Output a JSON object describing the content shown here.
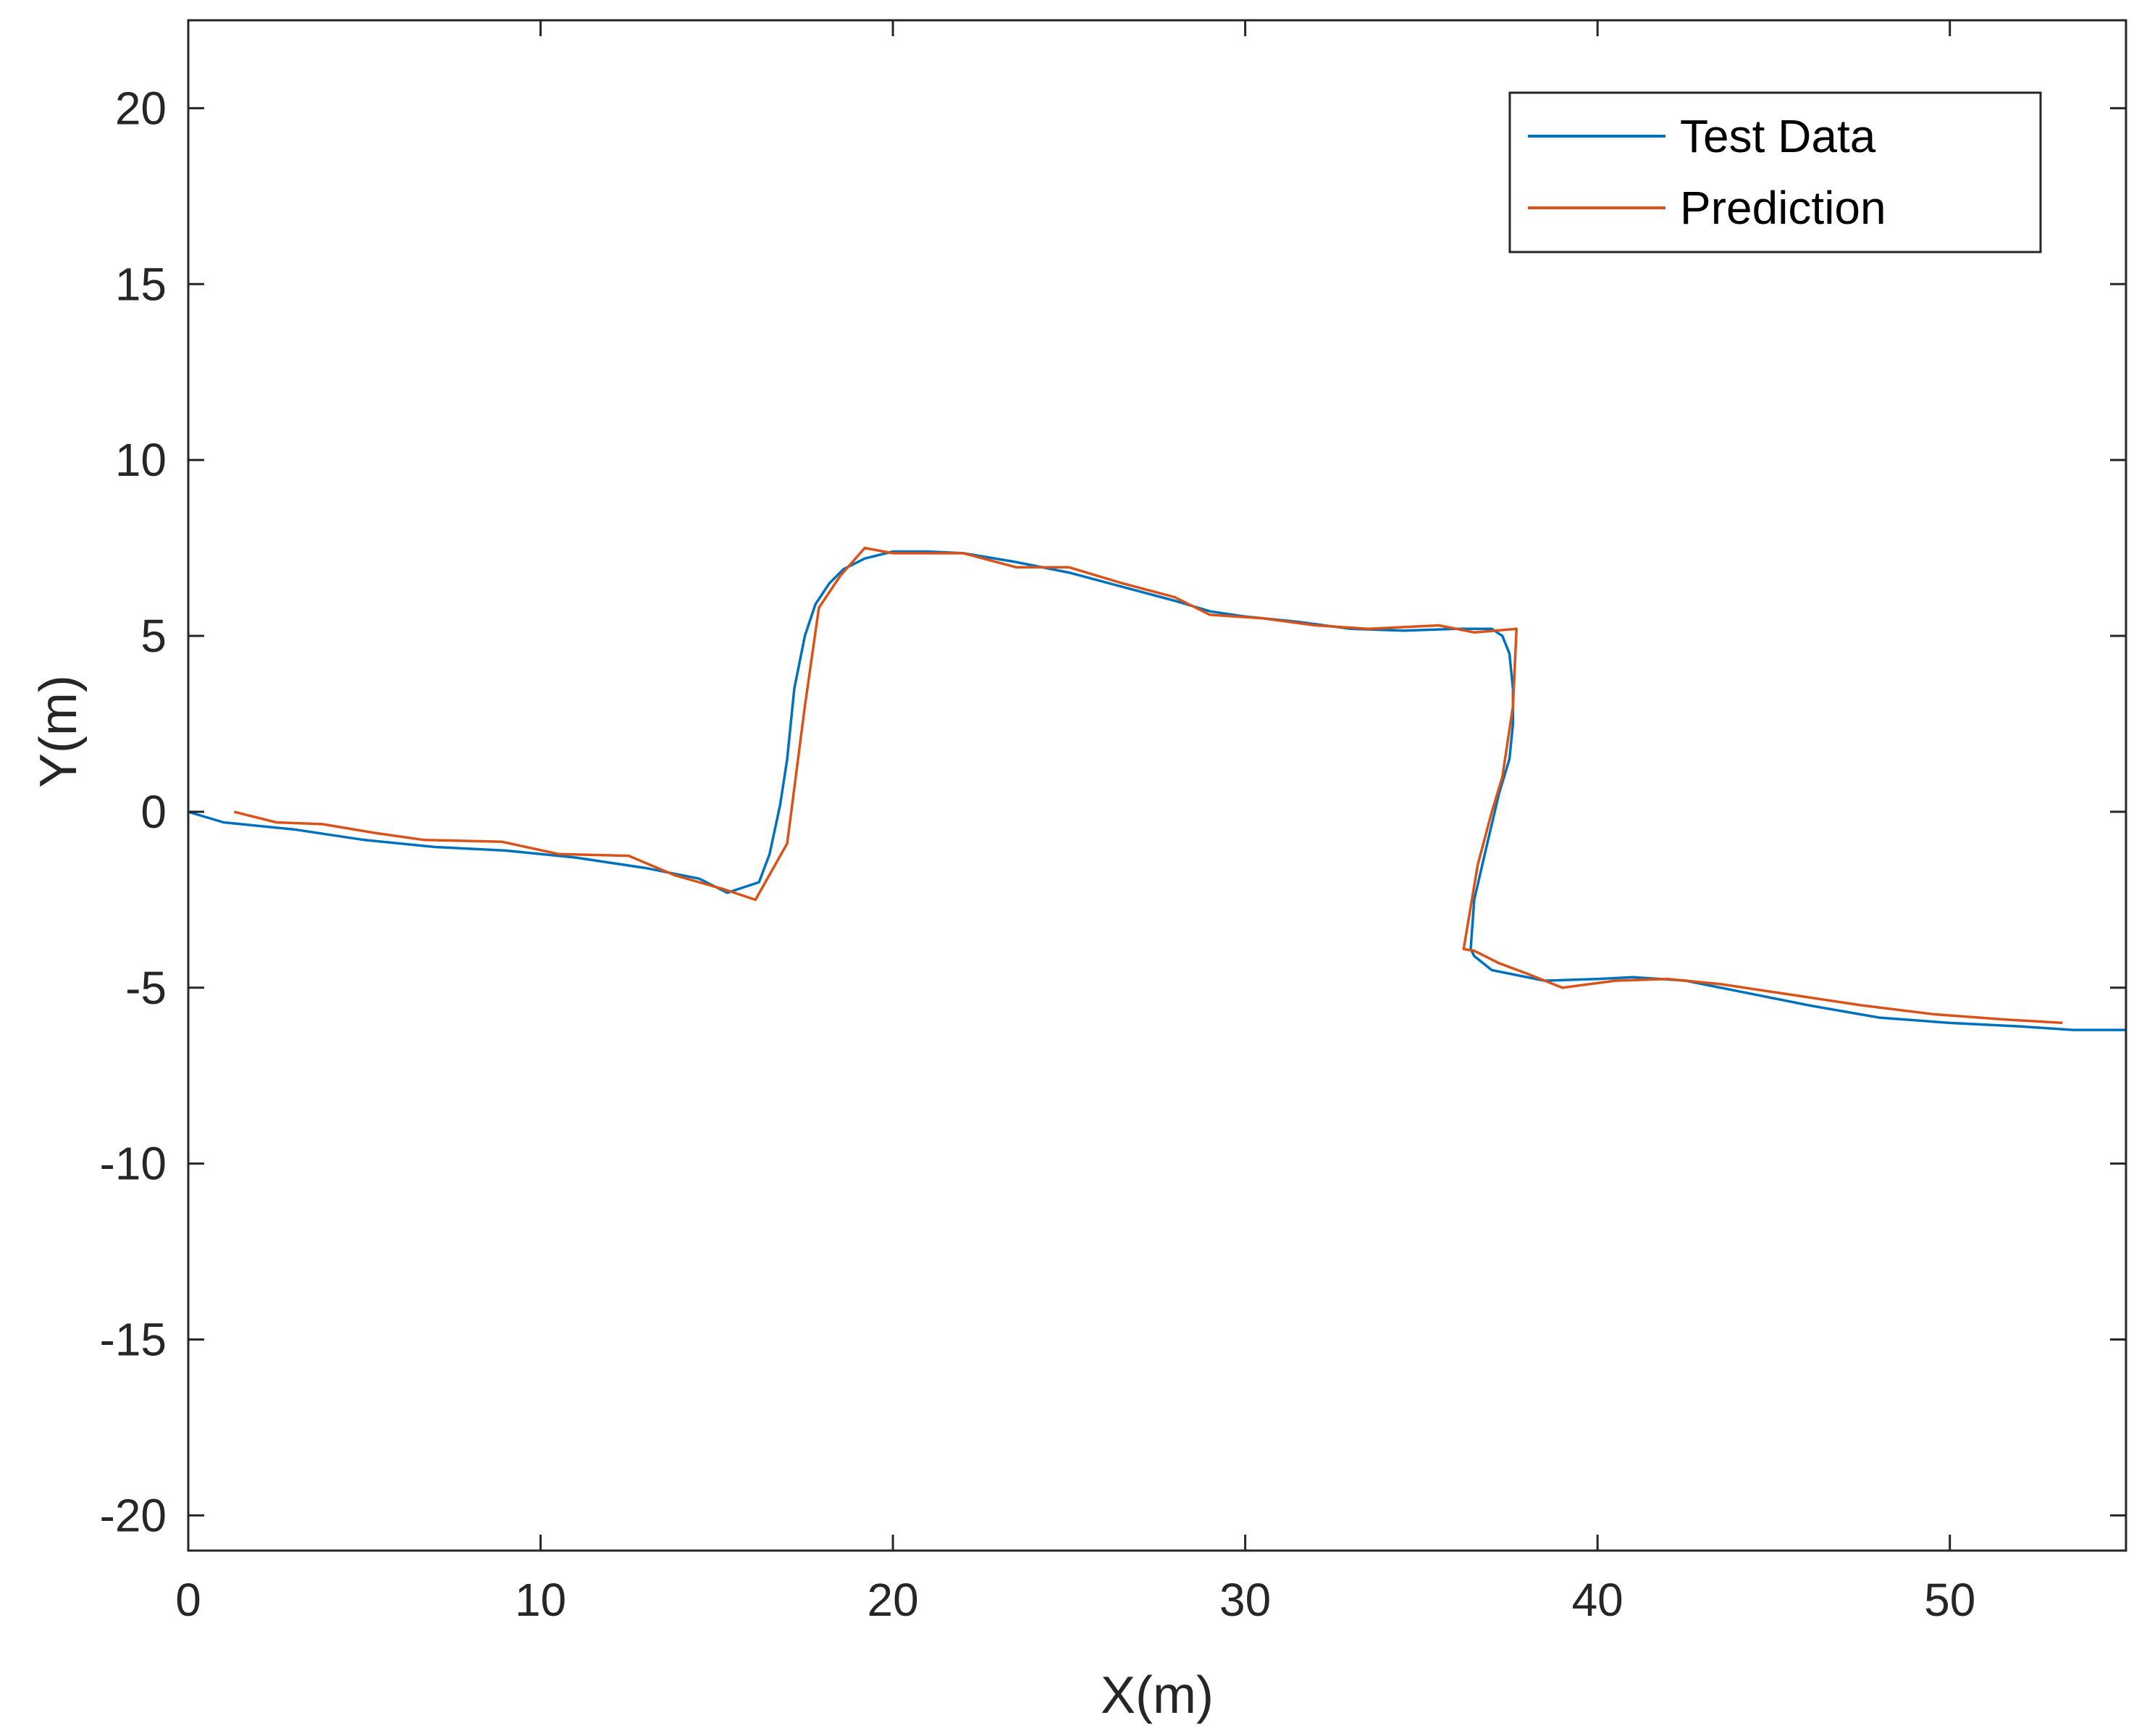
{
  "chart_data": {
    "type": "line",
    "title": "",
    "xlabel": "X(m)",
    "ylabel": "Y(m)",
    "xlim": [
      0,
      55
    ],
    "ylim": [
      -21,
      22.5
    ],
    "xticks": [
      0,
      10,
      20,
      30,
      40,
      50
    ],
    "yticks": [
      -20,
      -15,
      -10,
      -5,
      0,
      5,
      10,
      15,
      20
    ],
    "xtick_labels": [
      "0",
      "10",
      "20",
      "30",
      "40",
      "50"
    ],
    "ytick_labels": [
      "-20",
      "-15",
      "-10",
      "-5",
      "0",
      "5",
      "10",
      "15",
      "20"
    ],
    "grid": false,
    "legend": {
      "location": "top-right",
      "entries": [
        "Test Data",
        "Prediction"
      ]
    },
    "series": [
      {
        "name": "Test Data",
        "color": "#0072BD",
        "x": [
          0,
          1,
          2,
          3,
          5,
          7,
          9,
          11,
          13,
          14.5,
          15.3,
          16.2,
          16.5,
          16.8,
          17.0,
          17.2,
          17.5,
          17.8,
          18.2,
          18.6,
          19.2,
          20.0,
          21.0,
          22.0,
          23.5,
          25.0,
          26.5,
          28.0,
          29.0,
          30.0,
          31.5,
          33.0,
          34.5,
          36.0,
          37.0,
          37.3,
          37.5,
          37.6,
          37.6,
          37.5,
          37.2,
          36.8,
          36.5,
          36.4,
          36.5,
          37.0,
          37.5,
          38.5,
          40.0,
          41.0,
          42.5,
          44.0,
          46.0,
          48.0,
          50.0,
          52.0,
          53.5,
          55.0
        ],
        "y": [
          0,
          -0.3,
          -0.4,
          -0.5,
          -0.8,
          -1.0,
          -1.1,
          -1.3,
          -1.6,
          -1.9,
          -2.3,
          -2.0,
          -1.2,
          0.2,
          1.5,
          3.5,
          5.0,
          5.9,
          6.5,
          6.9,
          7.2,
          7.4,
          7.4,
          7.35,
          7.1,
          6.8,
          6.4,
          6.0,
          5.7,
          5.55,
          5.4,
          5.2,
          5.15,
          5.2,
          5.2,
          5.0,
          4.5,
          3.5,
          2.5,
          1.5,
          0.5,
          -1.2,
          -2.5,
          -3.9,
          -4.1,
          -4.5,
          -4.6,
          -4.8,
          -4.75,
          -4.7,
          -4.8,
          -5.1,
          -5.5,
          -5.85,
          -6.0,
          -6.1,
          -6.2,
          -6.2
        ]
      },
      {
        "name": "Prediction",
        "color": "#D95319",
        "x": [
          1.3,
          2.5,
          3.8,
          5.3,
          6.7,
          8.9,
          10.5,
          12.5,
          13.8,
          15.2,
          16.1,
          17.0,
          17.5,
          17.9,
          18.5,
          19.2,
          20.0,
          22.0,
          23.5,
          25.0,
          26.5,
          28.0,
          29.0,
          30.5,
          32.0,
          33.5,
          35.5,
          36.5,
          37.7,
          37.6,
          37.3,
          37.0,
          36.6,
          36.2,
          36.5,
          37.2,
          38.0,
          39.0,
          40.5,
          42.0,
          43.5,
          45.5,
          47.5,
          49.5,
          51.5,
          53.2
        ],
        "y": [
          0,
          -0.3,
          -0.35,
          -0.6,
          -0.8,
          -0.85,
          -1.2,
          -1.25,
          -1.8,
          -2.2,
          -2.5,
          -0.9,
          3.0,
          5.8,
          6.7,
          7.5,
          7.35,
          7.35,
          6.95,
          6.95,
          6.5,
          6.1,
          5.6,
          5.5,
          5.3,
          5.2,
          5.3,
          5.1,
          5.2,
          3.0,
          1.0,
          0,
          -1.5,
          -3.9,
          -3.95,
          -4.3,
          -4.6,
          -5.0,
          -4.8,
          -4.75,
          -4.9,
          -5.2,
          -5.5,
          -5.75,
          -5.9,
          -6.0
        ]
      }
    ]
  }
}
